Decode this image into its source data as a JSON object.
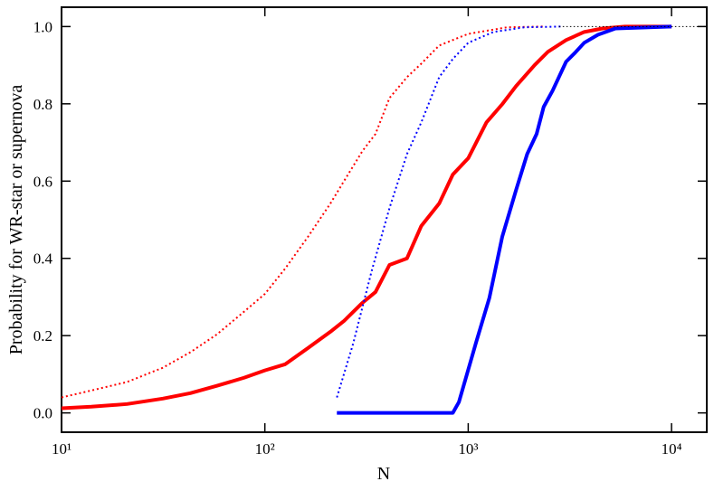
{
  "chart_data": {
    "type": "line",
    "xlabel": "N",
    "ylabel": "Probability for WR-star or supernova",
    "xscale": "log",
    "xlim": [
      10,
      14900
    ],
    "ylim": [
      -0.05,
      1.05
    ],
    "xticks": [
      {
        "value": 10,
        "label": "10¹"
      },
      {
        "value": 100,
        "label": "10²"
      },
      {
        "value": 1000,
        "label": "10³"
      },
      {
        "value": 10000,
        "label": "10⁴"
      }
    ],
    "yticks": [
      {
        "value": 0,
        "label": "0.0"
      },
      0.2,
      0.4,
      0.6,
      0.8,
      {
        "value": 1,
        "label": "1.0"
      }
    ],
    "grid": false,
    "series": [
      {
        "color": "#ff0000",
        "style": "solid",
        "width": 4,
        "x": [
          10,
          14,
          21,
          31.5,
          43,
          58,
          79,
          100,
          126,
          163,
          210,
          245,
          302,
          350,
          410,
          500,
          588,
          720,
          840,
          1000,
          1230,
          1470,
          1720,
          2120,
          2470,
          3030,
          3720,
          4570,
          5900,
          10000
        ],
        "values": [
          0.012,
          0.016,
          0.023,
          0.037,
          0.051,
          0.07,
          0.091,
          0.11,
          0.126,
          0.168,
          0.21,
          0.238,
          0.285,
          0.313,
          0.383,
          0.4,
          0.484,
          0.542,
          0.617,
          0.659,
          0.752,
          0.799,
          0.846,
          0.9,
          0.935,
          0.965,
          0.986,
          0.995,
          1.0,
          1.0
        ]
      },
      {
        "color": "#ff0000",
        "style": "dotted",
        "width": 2,
        "x": [
          10,
          14,
          21,
          31.5,
          43,
          58,
          79,
          100,
          126,
          163,
          210,
          245,
          302,
          350,
          410,
          500,
          588,
          720,
          1000,
          1550,
          2350
        ],
        "values": [
          0.04,
          0.058,
          0.08,
          0.117,
          0.157,
          0.203,
          0.262,
          0.308,
          0.374,
          0.456,
          0.542,
          0.6,
          0.678,
          0.722,
          0.815,
          0.869,
          0.904,
          0.951,
          0.981,
          0.998,
          1.0
        ]
      },
      {
        "color": "#0000ff",
        "style": "solid",
        "width": 4,
        "x": [
          226,
          840,
          900,
          1090,
          1270,
          1470,
          1720,
          1950,
          2170,
          2350,
          2600,
          3030,
          3350,
          3720,
          4350,
          5300,
          10000
        ],
        "values": [
          0,
          0,
          0.028,
          0.18,
          0.297,
          0.456,
          0.577,
          0.67,
          0.722,
          0.792,
          0.834,
          0.909,
          0.932,
          0.958,
          0.979,
          0.995,
          1.0
        ]
      },
      {
        "color": "#0000ff",
        "style": "dotted",
        "width": 2,
        "x": [
          226,
          272,
          335,
          410,
          500,
          588,
          720,
          840,
          1000,
          1330,
          1890,
          2880
        ],
        "values": [
          0.04,
          0.18,
          0.367,
          0.53,
          0.67,
          0.752,
          0.869,
          0.916,
          0.958,
          0.986,
          0.998,
          1.0
        ]
      },
      {
        "color": "#000000",
        "style": "dotted",
        "width": 1,
        "x": [
          2800,
          14900
        ],
        "values": [
          1.0,
          1.0
        ]
      }
    ]
  }
}
